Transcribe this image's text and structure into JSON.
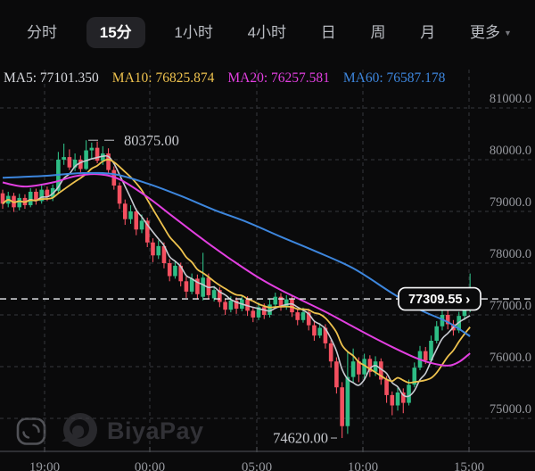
{
  "header": {
    "tabs": [
      "分时",
      "15分",
      "1小时",
      "4小时",
      "日",
      "周",
      "月",
      "更多"
    ],
    "active_index": 1,
    "more_caret": "▼"
  },
  "indicators": [
    {
      "id": "ma5",
      "text": "MA5: 77101.350"
    },
    {
      "id": "ma10",
      "text": "MA10: 76825.874"
    },
    {
      "id": "ma20",
      "text": "MA20: 76257.581"
    },
    {
      "id": "ma60",
      "text": "MA60: 76587.178"
    }
  ],
  "price_badge": {
    "price": "77309.55",
    "chevron": "›"
  },
  "watermark": {
    "brand": "BiyaPay"
  },
  "colors": {
    "background": "#0a0a0b",
    "up": "#2ebd85",
    "down": "#f45060",
    "ma5": "#c8cbd2",
    "ma10": "#eec24e",
    "ma20": "#e23fe0",
    "ma60": "#3d86dd",
    "ma5_text": "#d7d9de",
    "grid": "#37383d",
    "axis_text": "#97999f",
    "axis_line": "#2e2f33",
    "price_line": "#edeff3",
    "annotation": "#c6c8cd",
    "badge_border": "#f5f6f8",
    "badge_text": "#ffffff",
    "watermark": "#313136"
  },
  "chart_data": {
    "type": "candlestick",
    "timeframe": "15分",
    "current_price": 77309.55,
    "high_annotation": "80375.00",
    "low_annotation": "74620.00",
    "y_axis": {
      "labels": [
        "81000.0",
        "80000.0",
        "79000.0",
        "78000.0",
        "77000.0",
        "76000.0",
        "75000.0"
      ],
      "prices": [
        81000,
        80000,
        79000,
        78000,
        77000,
        76000,
        75000
      ]
    },
    "x_axis": {
      "labels": [
        "19:00",
        "00:00",
        "05:00",
        "10:00",
        "15:00"
      ],
      "positions": [
        50,
        168,
        288,
        407,
        526
      ]
    },
    "candles": [
      [
        79350,
        79420,
        79050,
        79150
      ],
      [
        79150,
        79380,
        79080,
        79300
      ],
      [
        79300,
        79360,
        78990,
        79080
      ],
      [
        79080,
        79340,
        79020,
        79260
      ],
      [
        79260,
        79330,
        79050,
        79120
      ],
      [
        79120,
        79450,
        79080,
        79380
      ],
      [
        79380,
        79440,
        79130,
        79200
      ],
      [
        79200,
        79500,
        79150,
        79420
      ],
      [
        79420,
        79480,
        79200,
        79280
      ],
      [
        79280,
        79520,
        79200,
        79450
      ],
      [
        79400,
        80150,
        79350,
        80000
      ],
      [
        80000,
        80310,
        79900,
        80050
      ],
      [
        80050,
        80200,
        79800,
        79850
      ],
      [
        79850,
        80120,
        79780,
        80000
      ],
      [
        80000,
        80080,
        79740,
        79820
      ],
      [
        79820,
        80375,
        79800,
        80180
      ],
      [
        80180,
        80330,
        80020,
        80230
      ],
      [
        80230,
        80350,
        79930,
        79980
      ],
      [
        79980,
        80260,
        79900,
        80120
      ],
      [
        80120,
        80220,
        79730,
        79800
      ],
      [
        79800,
        79870,
        79420,
        79500
      ],
      [
        79500,
        79560,
        79050,
        79150
      ],
      [
        79150,
        79230,
        78740,
        78850
      ],
      [
        78850,
        79120,
        78760,
        79000
      ],
      [
        79000,
        79060,
        78540,
        78650
      ],
      [
        78650,
        78940,
        78580,
        78820
      ],
      [
        78820,
        78880,
        78310,
        78400
      ],
      [
        78400,
        78480,
        78020,
        78150
      ],
      [
        78150,
        78440,
        78080,
        78330
      ],
      [
        78330,
        78400,
        77900,
        78000
      ],
      [
        78000,
        78080,
        77650,
        77750
      ],
      [
        77750,
        78040,
        77700,
        77950
      ],
      [
        77950,
        78010,
        77550,
        77650
      ],
      [
        77650,
        77740,
        77330,
        77450
      ],
      [
        77450,
        77800,
        77400,
        77700
      ],
      [
        77700,
        77780,
        77300,
        77400
      ],
      [
        77350,
        78200,
        77280,
        77720
      ],
      [
        77720,
        77800,
        77300,
        77380
      ],
      [
        77320,
        77560,
        77260,
        77480
      ],
      [
        77480,
        77540,
        77150,
        77250
      ],
      [
        77250,
        77320,
        77000,
        77100
      ],
      [
        77100,
        77360,
        77050,
        77280
      ],
      [
        77280,
        77340,
        77020,
        77120
      ],
      [
        77120,
        77380,
        77070,
        77300
      ],
      [
        77300,
        77360,
        76980,
        77080
      ],
      [
        77080,
        77150,
        76860,
        76950
      ],
      [
        76950,
        77240,
        76900,
        77150
      ],
      [
        77150,
        77220,
        76920,
        77000
      ],
      [
        77000,
        77300,
        76950,
        77200
      ],
      [
        77200,
        77430,
        77150,
        77350
      ],
      [
        77350,
        77420,
        77080,
        77150
      ],
      [
        77150,
        77380,
        77100,
        77300
      ],
      [
        77300,
        77360,
        76960,
        77050
      ],
      [
        77050,
        77120,
        76800,
        76900
      ],
      [
        76900,
        77140,
        76850,
        77050
      ],
      [
        77050,
        77120,
        76700,
        76800
      ],
      [
        76800,
        76880,
        76500,
        76600
      ],
      [
        76600,
        76840,
        76550,
        76750
      ],
      [
        76750,
        76820,
        76350,
        76450
      ],
      [
        76450,
        76520,
        75980,
        76100
      ],
      [
        76100,
        76180,
        75480,
        75600
      ],
      [
        75600,
        75700,
        74620,
        74850
      ],
      [
        74850,
        76300,
        74700,
        75800
      ],
      [
        75800,
        76350,
        75700,
        76100
      ],
      [
        76100,
        76180,
        75700,
        75850
      ],
      [
        75850,
        76250,
        75750,
        76150
      ],
      [
        76150,
        76220,
        75800,
        75900
      ],
      [
        75900,
        76200,
        75820,
        76100
      ],
      [
        76100,
        76160,
        75650,
        75750
      ],
      [
        75750,
        75820,
        75300,
        75450
      ],
      [
        75450,
        75520,
        75060,
        75250
      ],
      [
        75250,
        75600,
        75150,
        75500
      ],
      [
        75500,
        75580,
        75100,
        75300
      ],
      [
        75300,
        75750,
        75250,
        75650
      ],
      [
        75650,
        76080,
        75600,
        75980
      ],
      [
        75980,
        76400,
        75930,
        76300
      ],
      [
        76300,
        76380,
        76050,
        76120
      ],
      [
        76120,
        76600,
        76080,
        76500
      ],
      [
        76500,
        76880,
        76450,
        76780
      ],
      [
        76780,
        77100,
        76700,
        77000
      ],
      [
        77000,
        77080,
        76720,
        76820
      ],
      [
        76820,
        76900,
        76600,
        76700
      ],
      [
        76700,
        77060,
        76650,
        76980
      ],
      [
        76980,
        77200,
        76900,
        77120
      ],
      [
        77120,
        77800,
        77050,
        77309.55
      ]
    ],
    "ma20_points": [
      [
        0,
        79560
      ],
      [
        4,
        79480
      ],
      [
        9,
        79560
      ],
      [
        13,
        79680
      ],
      [
        17,
        79720
      ],
      [
        21,
        79620
      ],
      [
        26,
        79280
      ],
      [
        30,
        78950
      ],
      [
        34,
        78620
      ],
      [
        38,
        78300
      ],
      [
        42,
        78000
      ],
      [
        46,
        77720
      ],
      [
        50,
        77480
      ],
      [
        54,
        77270
      ],
      [
        58,
        77060
      ],
      [
        62,
        76830
      ],
      [
        66,
        76600
      ],
      [
        70,
        76380
      ],
      [
        74,
        76180
      ],
      [
        77,
        76070
      ],
      [
        80,
        76020
      ],
      [
        82,
        76090
      ],
      [
        84,
        76258
      ]
    ],
    "ma60_points": [
      [
        0,
        79650
      ],
      [
        8,
        79690
      ],
      [
        14,
        79740
      ],
      [
        20,
        79720
      ],
      [
        26,
        79540
      ],
      [
        32,
        79300
      ],
      [
        38,
        79030
      ],
      [
        44,
        78790
      ],
      [
        50,
        78510
      ],
      [
        56,
        78240
      ],
      [
        63,
        77900
      ],
      [
        70,
        77420
      ],
      [
        75,
        77100
      ],
      [
        80,
        76860
      ],
      [
        84,
        76587
      ]
    ]
  }
}
